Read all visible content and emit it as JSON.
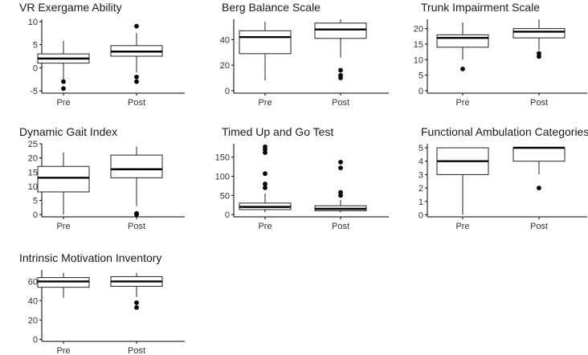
{
  "chart_data": [
    {
      "type": "boxplot",
      "title": "VR Exergame Ability",
      "categories": [
        "Pre",
        "Post"
      ],
      "yticks": [
        -5,
        0,
        5,
        10
      ],
      "ylim": [
        -5.5,
        10.5
      ],
      "boxes": [
        {
          "label": "Pre",
          "whislo": -2.5,
          "q1": 1,
          "med": 2,
          "q3": 3,
          "whishi": 5.8,
          "outliers": [
            -3,
            -4.5
          ]
        },
        {
          "label": "Post",
          "whislo": -1,
          "q1": 2.5,
          "med": 3.5,
          "q3": 4.8,
          "whishi": 7.5,
          "outliers": [
            9,
            -2,
            -3
          ]
        }
      ]
    },
    {
      "type": "boxplot",
      "title": "Berg Balance Scale",
      "categories": [
        "Pre",
        "Post"
      ],
      "yticks": [
        0,
        20,
        40
      ],
      "ylim": [
        -2,
        56
      ],
      "boxes": [
        {
          "label": "Pre",
          "whislo": 8,
          "q1": 29,
          "med": 42,
          "q3": 47,
          "whishi": 54,
          "outliers": []
        },
        {
          "label": "Post",
          "whislo": 26,
          "q1": 41,
          "med": 48,
          "q3": 53,
          "whishi": 56,
          "outliers": [
            16,
            12,
            10
          ]
        }
      ]
    },
    {
      "type": "boxplot",
      "title": "Trunk Impairment Scale",
      "categories": [
        "Pre",
        "Post"
      ],
      "yticks": [
        0,
        5,
        10,
        15,
        20
      ],
      "ylim": [
        -0.8,
        23
      ],
      "boxes": [
        {
          "label": "Pre",
          "whislo": 10,
          "q1": 14,
          "med": 17,
          "q3": 18,
          "whishi": 22,
          "outliers": [
            7
          ]
        },
        {
          "label": "Post",
          "whislo": 13,
          "q1": 17,
          "med": 19,
          "q3": 20,
          "whishi": 23,
          "outliers": [
            12,
            11
          ]
        }
      ]
    },
    {
      "type": "boxplot",
      "title": "Dynamic Gait Index",
      "categories": [
        "Pre",
        "Post"
      ],
      "yticks": [
        0,
        5,
        10,
        15,
        20,
        25
      ],
      "ylim": [
        -0.8,
        25
      ],
      "boxes": [
        {
          "label": "Pre",
          "whislo": 0,
          "q1": 8,
          "med": 13,
          "q3": 17,
          "whishi": 22,
          "outliers": []
        },
        {
          "label": "Post",
          "whislo": 3,
          "q1": 13,
          "med": 16,
          "q3": 21,
          "whishi": 24,
          "outliers": [
            0.4,
            0
          ]
        }
      ]
    },
    {
      "type": "boxplot",
      "title": "Timed Up and Go Test",
      "categories": [
        "Pre",
        "Post"
      ],
      "yticks": [
        0,
        50,
        100,
        150
      ],
      "ylim": [
        -6,
        185
      ],
      "boxes": [
        {
          "label": "Pre",
          "whislo": 6,
          "q1": 13,
          "med": 20,
          "q3": 30,
          "whishi": 55,
          "outliers": [
            70,
            80,
            107,
            162,
            170,
            177
          ]
        },
        {
          "label": "Post",
          "whislo": 6,
          "q1": 10,
          "med": 15,
          "q3": 23,
          "whishi": 38,
          "outliers": [
            50,
            58,
            122,
            137
          ]
        }
      ]
    },
    {
      "type": "boxplot",
      "title": "Functional Ambulation Categories",
      "categories": [
        "Pre",
        "Post"
      ],
      "yticks": [
        0,
        1,
        2,
        3,
        4,
        5
      ],
      "ylim": [
        -0.15,
        5.3
      ],
      "boxes": [
        {
          "label": "Pre",
          "whislo": 0,
          "q1": 3,
          "med": 4,
          "q3": 5,
          "whishi": 5,
          "outliers": []
        },
        {
          "label": "Post",
          "whislo": 3,
          "q1": 4,
          "med": 5,
          "q3": 5,
          "whishi": 5,
          "outliers": [
            2
          ]
        }
      ]
    },
    {
      "type": "boxplot",
      "title": "Intrinsic Motivation Inventory",
      "categories": [
        "Pre",
        "Post"
      ],
      "yticks": [
        0,
        20,
        40,
        60
      ],
      "ylim": [
        -2,
        72
      ],
      "boxes": [
        {
          "label": "Pre",
          "whislo": 43,
          "q1": 54,
          "med": 60,
          "q3": 64,
          "whishi": 69,
          "outliers": []
        },
        {
          "label": "Post",
          "whislo": 44,
          "q1": 55,
          "med": 60,
          "q3": 65,
          "whishi": 69,
          "outliers": [
            38,
            33
          ]
        }
      ]
    }
  ]
}
